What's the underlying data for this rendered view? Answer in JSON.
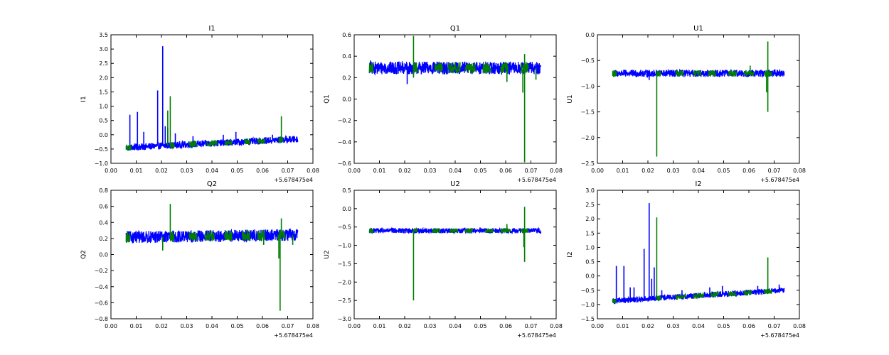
{
  "figure": {
    "background": "#ffffff",
    "series_colors": [
      "#0000ff",
      "#007f00"
    ],
    "x_offset_label": "+5.678475e4"
  },
  "chart_data": [
    {
      "type": "line",
      "title": "I1",
      "ylabel": "I1",
      "xlim": [
        0.0,
        0.08
      ],
      "ylim": [
        -1.0,
        3.5
      ],
      "xticks": [
        0.0,
        0.01,
        0.02,
        0.03,
        0.04,
        0.05,
        0.06,
        0.07,
        0.08
      ],
      "xtick_labels": [
        "0.00",
        "0.01",
        "0.02",
        "0.03",
        "0.04",
        "0.05",
        "0.06",
        "0.07",
        "0.08"
      ],
      "yticks": [
        -1.0,
        -0.5,
        0.0,
        0.5,
        1.0,
        1.5,
        2.0,
        2.5,
        3.0,
        3.5
      ],
      "ytick_labels": [
        "−1.0",
        "−0.5",
        "0.0",
        "0.5",
        "1.0",
        "1.5",
        "2.0",
        "2.5",
        "3.0",
        "3.5"
      ],
      "x_range": [
        0.006,
        0.074
      ],
      "band": {
        "start_center": -0.45,
        "end_center": -0.15,
        "halfwidth": 0.12
      },
      "spikes_blue": [
        [
          0.0075,
          0.7
        ],
        [
          0.0105,
          0.8
        ],
        [
          0.013,
          0.1
        ],
        [
          0.0185,
          1.55
        ],
        [
          0.0205,
          3.1
        ],
        [
          0.0215,
          0.3
        ],
        [
          0.0225,
          0.25
        ],
        [
          0.0255,
          0.05
        ],
        [
          0.0325,
          -0.05
        ],
        [
          0.0445,
          0.0
        ],
        [
          0.0495,
          0.1
        ],
        [
          0.064,
          0.0
        ]
      ],
      "spikes_green": [
        [
          0.0235,
          1.35
        ],
        [
          0.0225,
          0.85
        ],
        [
          0.0675,
          0.65
        ]
      ],
      "dips_green": [],
      "green_segments": [
        [
          0.006,
          0.008
        ],
        [
          0.0235,
          0.025
        ],
        [
          0.031,
          0.034
        ],
        [
          0.038,
          0.042
        ],
        [
          0.045,
          0.048
        ],
        [
          0.053,
          0.055
        ],
        [
          0.058,
          0.061
        ],
        [
          0.0665,
          0.068
        ]
      ]
    },
    {
      "type": "line",
      "title": "Q1",
      "ylabel": "Q1",
      "xlim": [
        0.0,
        0.08
      ],
      "ylim": [
        -0.6,
        0.6
      ],
      "xticks": [
        0.0,
        0.01,
        0.02,
        0.03,
        0.04,
        0.05,
        0.06,
        0.07,
        0.08
      ],
      "xtick_labels": [
        "0.00",
        "0.01",
        "0.02",
        "0.03",
        "0.04",
        "0.05",
        "0.06",
        "0.07",
        "0.08"
      ],
      "yticks": [
        -0.6,
        -0.4,
        -0.2,
        0.0,
        0.2,
        0.4,
        0.6
      ],
      "ytick_labels": [
        "−0.6",
        "−0.4",
        "−0.2",
        "0.0",
        "0.2",
        "0.4",
        "0.6"
      ],
      "x_range": [
        0.006,
        0.074
      ],
      "band": {
        "start_center": 0.29,
        "end_center": 0.29,
        "halfwidth": 0.06
      },
      "spikes_blue": [
        [
          0.0065,
          0.36
        ],
        [
          0.021,
          0.14
        ]
      ],
      "spikes_green": [
        [
          0.0235,
          0.59
        ],
        [
          0.0675,
          0.42
        ]
      ],
      "dips_green": [
        [
          0.0235,
          0.2
        ],
        [
          0.0605,
          0.16
        ],
        [
          0.0675,
          -0.59
        ],
        [
          0.0668,
          0.06
        ],
        [
          0.072,
          0.18
        ]
      ],
      "green_segments": [
        [
          0.006,
          0.0075
        ],
        [
          0.0235,
          0.025
        ],
        [
          0.032,
          0.035
        ],
        [
          0.037,
          0.042
        ],
        [
          0.044,
          0.048
        ],
        [
          0.051,
          0.054
        ],
        [
          0.058,
          0.061
        ],
        [
          0.066,
          0.069
        ]
      ]
    },
    {
      "type": "line",
      "title": "U1",
      "ylabel": "U1",
      "xlim": [
        0.0,
        0.08
      ],
      "ylim": [
        -2.5,
        0.0
      ],
      "xticks": [
        0.0,
        0.01,
        0.02,
        0.03,
        0.04,
        0.05,
        0.06,
        0.07,
        0.08
      ],
      "xtick_labels": [
        "0.00",
        "0.01",
        "0.02",
        "0.03",
        "0.04",
        "0.05",
        "0.06",
        "0.07",
        "0.08"
      ],
      "yticks": [
        -2.5,
        -2.0,
        -1.5,
        -1.0,
        -0.5,
        0.0
      ],
      "ytick_labels": [
        "−2.5",
        "−2.0",
        "−1.5",
        "−1.0",
        "−0.5",
        "0.0"
      ],
      "x_range": [
        0.006,
        0.074
      ],
      "band": {
        "start_center": -0.75,
        "end_center": -0.75,
        "halfwidth": 0.07
      },
      "spikes_blue": [
        [
          0.0205,
          -0.88
        ]
      ],
      "spikes_green": [
        [
          0.0675,
          -0.13
        ],
        [
          0.0605,
          -0.6
        ]
      ],
      "dips_green": [
        [
          0.0235,
          -2.37
        ],
        [
          0.0675,
          -1.5
        ],
        [
          0.067,
          -1.12
        ]
      ],
      "green_segments": [
        [
          0.006,
          0.0075
        ],
        [
          0.0235,
          0.025
        ],
        [
          0.031,
          0.034
        ],
        [
          0.038,
          0.041
        ],
        [
          0.044,
          0.047
        ],
        [
          0.052,
          0.055
        ],
        [
          0.058,
          0.062
        ],
        [
          0.066,
          0.069
        ]
      ]
    },
    {
      "type": "line",
      "title": "Q2",
      "ylabel": "Q2",
      "xlim": [
        0.0,
        0.08
      ],
      "ylim": [
        -0.8,
        0.8
      ],
      "xticks": [
        0.0,
        0.01,
        0.02,
        0.03,
        0.04,
        0.05,
        0.06,
        0.07,
        0.08
      ],
      "xtick_labels": [
        "0.00",
        "0.01",
        "0.02",
        "0.03",
        "0.04",
        "0.05",
        "0.06",
        "0.07",
        "0.08"
      ],
      "yticks": [
        -0.8,
        -0.6,
        -0.4,
        -0.2,
        0.0,
        0.2,
        0.4,
        0.6,
        0.8
      ],
      "ytick_labels": [
        "−0.8",
        "−0.6",
        "−0.4",
        "−0.2",
        "0.0",
        "0.2",
        "0.4",
        "0.6",
        "0.8"
      ],
      "x_range": [
        0.006,
        0.074
      ],
      "band": {
        "start_center": 0.215,
        "end_center": 0.245,
        "halfwidth": 0.075
      },
      "spikes_blue": [
        [
          0.0065,
          0.29
        ]
      ],
      "spikes_green": [
        [
          0.0235,
          0.63
        ],
        [
          0.0675,
          0.45
        ]
      ],
      "dips_green": [
        [
          0.0205,
          0.05
        ],
        [
          0.067,
          -0.7
        ],
        [
          0.0665,
          -0.05
        ],
        [
          0.0605,
          0.12
        ],
        [
          0.072,
          0.12
        ]
      ],
      "green_segments": [
        [
          0.006,
          0.0075
        ],
        [
          0.0235,
          0.025
        ],
        [
          0.031,
          0.034
        ],
        [
          0.037,
          0.041
        ],
        [
          0.045,
          0.048
        ],
        [
          0.052,
          0.055
        ],
        [
          0.058,
          0.061
        ],
        [
          0.066,
          0.069
        ]
      ]
    },
    {
      "type": "line",
      "title": "U2",
      "ylabel": "U2",
      "xlim": [
        0.0,
        0.08
      ],
      "ylim": [
        -3.0,
        0.5
      ],
      "xticks": [
        0.0,
        0.01,
        0.02,
        0.03,
        0.04,
        0.05,
        0.06,
        0.07,
        0.08
      ],
      "xtick_labels": [
        "0.00",
        "0.01",
        "0.02",
        "0.03",
        "0.04",
        "0.05",
        "0.06",
        "0.07",
        "0.08"
      ],
      "yticks": [
        -3.0,
        -2.5,
        -2.0,
        -1.5,
        -1.0,
        -0.5,
        0.0,
        0.5
      ],
      "ytick_labels": [
        "−3.0",
        "−2.5",
        "−2.0",
        "−1.5",
        "−1.0",
        "−0.5",
        "0.0",
        "0.5"
      ],
      "x_range": [
        0.006,
        0.074
      ],
      "band": {
        "start_center": -0.6,
        "end_center": -0.6,
        "halfwidth": 0.07
      },
      "spikes_blue": [
        [
          0.0205,
          -0.55
        ]
      ],
      "spikes_green": [
        [
          0.0675,
          0.05
        ],
        [
          0.0605,
          -0.42
        ]
      ],
      "dips_green": [
        [
          0.0235,
          -2.5
        ],
        [
          0.0675,
          -1.45
        ],
        [
          0.0672,
          -1.05
        ]
      ],
      "green_segments": [
        [
          0.006,
          0.0075
        ],
        [
          0.0235,
          0.025
        ],
        [
          0.031,
          0.034
        ],
        [
          0.038,
          0.041
        ],
        [
          0.044,
          0.047
        ],
        [
          0.052,
          0.055
        ],
        [
          0.058,
          0.062
        ],
        [
          0.066,
          0.069
        ]
      ]
    },
    {
      "type": "line",
      "title": "I2",
      "ylabel": "I2",
      "xlim": [
        0.0,
        0.08
      ],
      "ylim": [
        -1.5,
        3.0
      ],
      "xticks": [
        0.0,
        0.01,
        0.02,
        0.03,
        0.04,
        0.05,
        0.06,
        0.07,
        0.08
      ],
      "xtick_labels": [
        "0.00",
        "0.01",
        "0.02",
        "0.03",
        "0.04",
        "0.05",
        "0.06",
        "0.07",
        "0.08"
      ],
      "yticks": [
        -1.5,
        -1.0,
        -0.5,
        0.0,
        0.5,
        1.0,
        1.5,
        2.0,
        2.5,
        3.0
      ],
      "ytick_labels": [
        "−1.5",
        "−1.0",
        "−0.5",
        "0.0",
        "0.5",
        "1.0",
        "1.5",
        "2.0",
        "2.5",
        "3.0"
      ],
      "x_range": [
        0.006,
        0.074
      ],
      "band": {
        "start_center": -0.88,
        "end_center": -0.5,
        "halfwidth": 0.1
      },
      "spikes_blue": [
        [
          0.0075,
          0.35
        ],
        [
          0.0105,
          0.35
        ],
        [
          0.013,
          -0.4
        ],
        [
          0.0145,
          -0.4
        ],
        [
          0.0185,
          0.95
        ],
        [
          0.0205,
          2.55
        ],
        [
          0.0215,
          -0.1
        ],
        [
          0.0225,
          0.3
        ],
        [
          0.0255,
          -0.5
        ],
        [
          0.0335,
          -0.5
        ],
        [
          0.0445,
          -0.4
        ],
        [
          0.0495,
          -0.35
        ],
        [
          0.0635,
          -0.35
        ],
        [
          0.072,
          -0.3
        ]
      ],
      "spikes_green": [
        [
          0.0235,
          2.05
        ],
        [
          0.0675,
          0.65
        ]
      ],
      "dips_green": [],
      "green_segments": [
        [
          0.006,
          0.0075
        ],
        [
          0.0235,
          0.025
        ],
        [
          0.031,
          0.035
        ],
        [
          0.038,
          0.042
        ],
        [
          0.045,
          0.048
        ],
        [
          0.052,
          0.055
        ],
        [
          0.058,
          0.061
        ],
        [
          0.066,
          0.069
        ]
      ]
    }
  ]
}
